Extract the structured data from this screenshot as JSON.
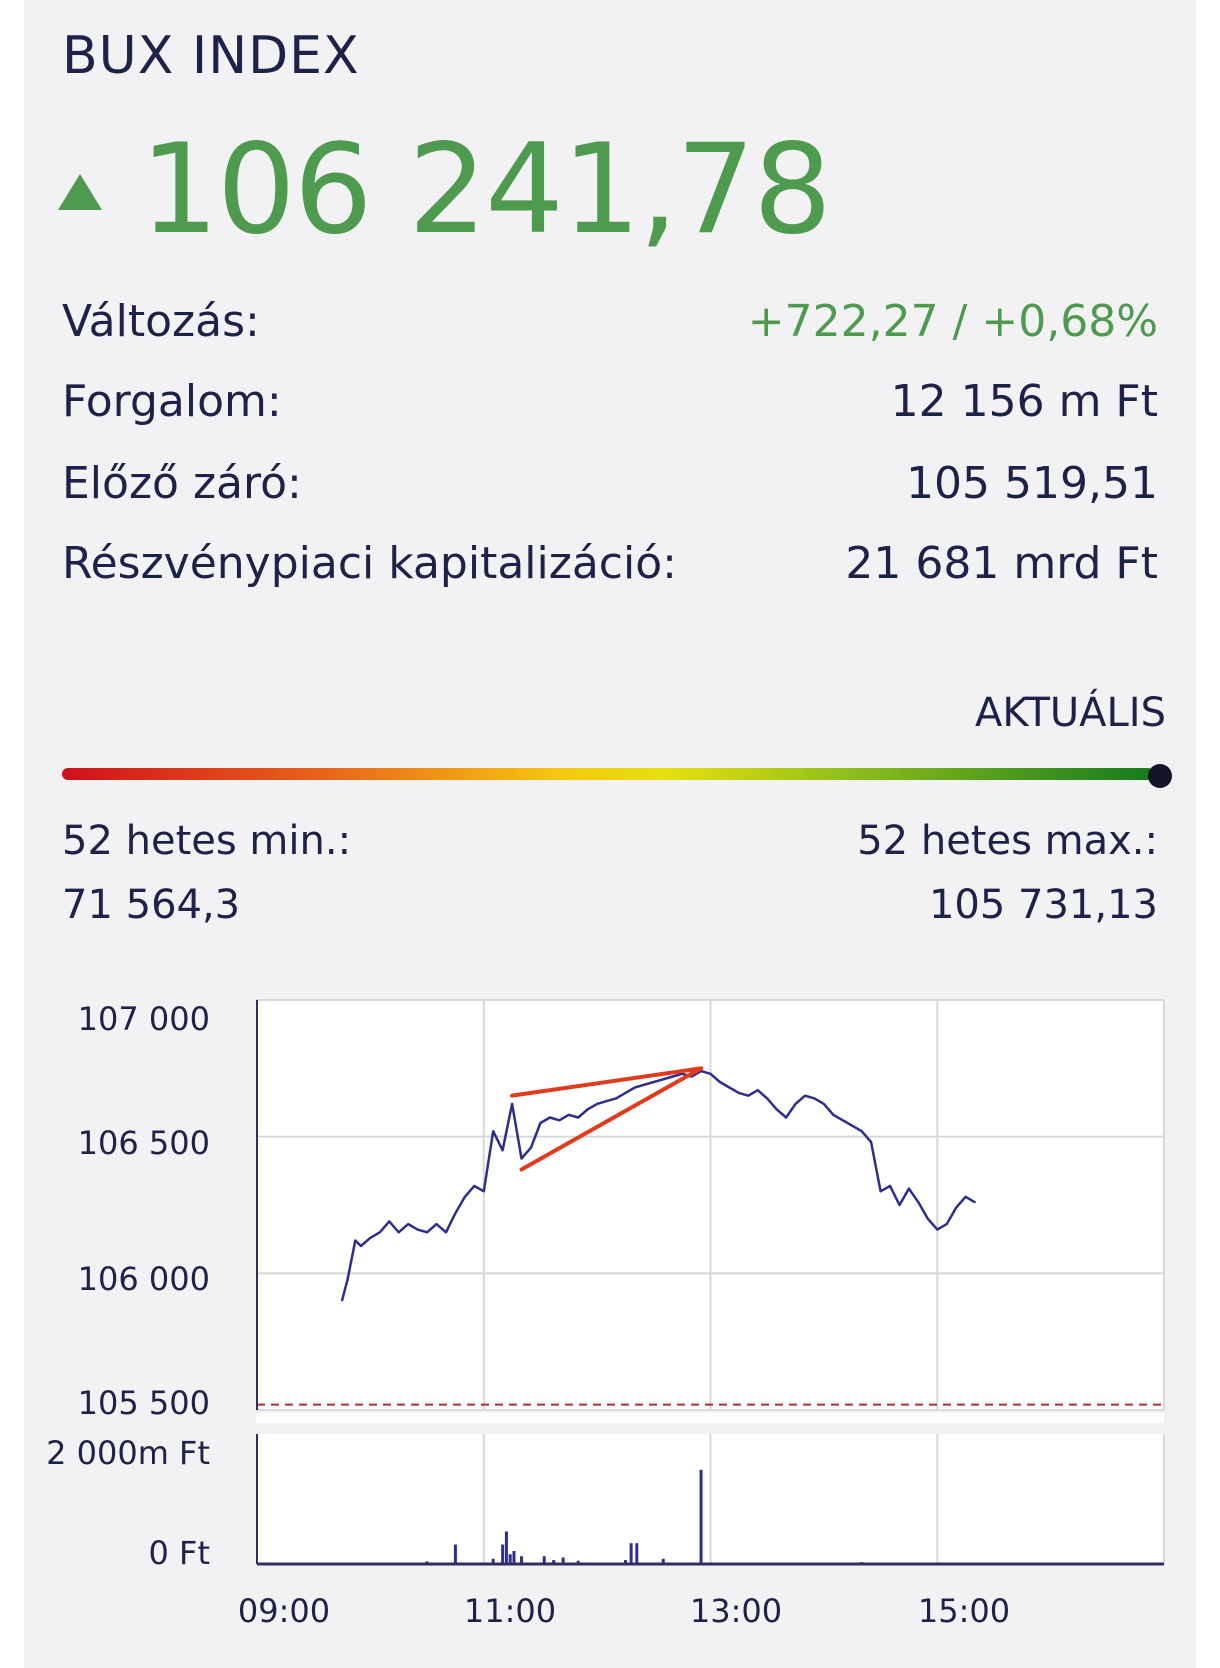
{
  "header": {
    "title": "BUX INDEX",
    "price": "106 241,78",
    "direction_icon": "triangle-up-icon"
  },
  "stats": [
    {
      "label": "Változás:",
      "value": "+722,27 / +0,68%",
      "color": "#4e9a4e"
    },
    {
      "label": "Forgalom:",
      "value": "12 156 m Ft"
    },
    {
      "label": "Előző záró:",
      "value": "105 519,51"
    },
    {
      "label": "Részvénypiaci kapitalizáció:",
      "value": "21 681 mrd Ft"
    }
  ],
  "range": {
    "current_label": "AKTUÁLIS",
    "min_label": "52 hetes min.:",
    "min_value": "71 564,3",
    "max_label": "52 hetes max.:",
    "max_value": "105 731,13",
    "position": 1.0
  },
  "colors": {
    "accent_green": "#4e9a4e",
    "line": "#2e2e8f",
    "trend": "#e23a1c",
    "prev_close": "#b22a2a"
  },
  "chart_data": {
    "type": "line",
    "title": "",
    "ylim": [
      105500,
      107000
    ],
    "y_ticks": [
      "107 000",
      "106 500",
      "106 000",
      "105 500"
    ],
    "y_tick_values": [
      107000,
      106500,
      106000,
      105500
    ],
    "x_ticks": [
      "09:00",
      "11:00",
      "13:00",
      "15:00"
    ],
    "x_tick_values": [
      "09:00",
      "11:00",
      "13:00",
      "15:00"
    ],
    "xlim": [
      "09:00",
      "17:00"
    ],
    "grid": true,
    "previous_close": 105519.51,
    "series": [
      {
        "x": [
          "09:45",
          "09:48",
          "09:52",
          "09:55",
          "10:00",
          "10:05",
          "10:10",
          "10:15",
          "10:20",
          "10:25",
          "10:30",
          "10:35",
          "10:40",
          "10:45",
          "10:50",
          "10:55",
          "11:00",
          "11:05",
          "11:10",
          "11:15",
          "11:20",
          "11:25",
          "11:30",
          "11:35",
          "11:40",
          "11:45",
          "11:50",
          "11:55",
          "12:00",
          "12:05",
          "12:10",
          "12:15",
          "12:20",
          "12:25",
          "12:30",
          "12:35",
          "12:40",
          "12:45",
          "12:50",
          "12:55",
          "13:00",
          "13:05",
          "13:10",
          "13:15",
          "13:20",
          "13:25",
          "13:30",
          "13:35",
          "13:40",
          "13:45",
          "13:50",
          "13:55",
          "14:00",
          "14:05",
          "14:10",
          "14:15",
          "14:20",
          "14:25",
          "14:30",
          "14:35",
          "14:40",
          "14:45",
          "14:50",
          "14:55",
          "15:00",
          "15:05",
          "15:10",
          "15:15",
          "15:20"
        ],
        "values": [
          105900,
          105980,
          106120,
          106100,
          106130,
          106150,
          106190,
          106150,
          106180,
          106160,
          106150,
          106180,
          106150,
          106220,
          106280,
          106320,
          106300,
          106520,
          106450,
          106620,
          106420,
          106460,
          106550,
          106570,
          106560,
          106580,
          106570,
          106600,
          106620,
          106630,
          106640,
          106660,
          106680,
          106690,
          106700,
          106710,
          106720,
          106730,
          106720,
          106740,
          106730,
          106700,
          106680,
          106660,
          106650,
          106670,
          106640,
          106600,
          106570,
          106620,
          106650,
          106640,
          106620,
          106580,
          106560,
          106540,
          106520,
          106480,
          106300,
          106320,
          106250,
          106310,
          106260,
          106200,
          106160,
          106180,
          106240,
          106280,
          106260
        ]
      }
    ],
    "trend_lines": [
      {
        "from": [
          "11:15",
          106650
        ],
        "to": [
          "12:55",
          106750
        ]
      },
      {
        "from": [
          "11:20",
          106380
        ],
        "to": [
          "12:55",
          106750
        ]
      }
    ],
    "volume": {
      "y_ticks": [
        "2 000m Ft",
        "0 Ft"
      ],
      "ylim": [
        0,
        2000
      ],
      "bars": [
        {
          "x": "09:50",
          "value": 20
        },
        {
          "x": "10:15",
          "value": 20
        },
        {
          "x": "10:30",
          "value": 40
        },
        {
          "x": "10:45",
          "value": 300
        },
        {
          "x": "11:05",
          "value": 80
        },
        {
          "x": "11:10",
          "value": 300
        },
        {
          "x": "11:12",
          "value": 500
        },
        {
          "x": "11:14",
          "value": 150
        },
        {
          "x": "11:16",
          "value": 200
        },
        {
          "x": "11:20",
          "value": 120
        },
        {
          "x": "11:32",
          "value": 120
        },
        {
          "x": "11:37",
          "value": 60
        },
        {
          "x": "11:42",
          "value": 100
        },
        {
          "x": "11:50",
          "value": 50
        },
        {
          "x": "12:15",
          "value": 60
        },
        {
          "x": "12:18",
          "value": 320
        },
        {
          "x": "12:21",
          "value": 320
        },
        {
          "x": "12:35",
          "value": 80
        },
        {
          "x": "12:55",
          "value": 1450
        },
        {
          "x": "13:05",
          "value": 20
        },
        {
          "x": "13:30",
          "value": 20
        },
        {
          "x": "14:20",
          "value": 30
        }
      ]
    }
  }
}
